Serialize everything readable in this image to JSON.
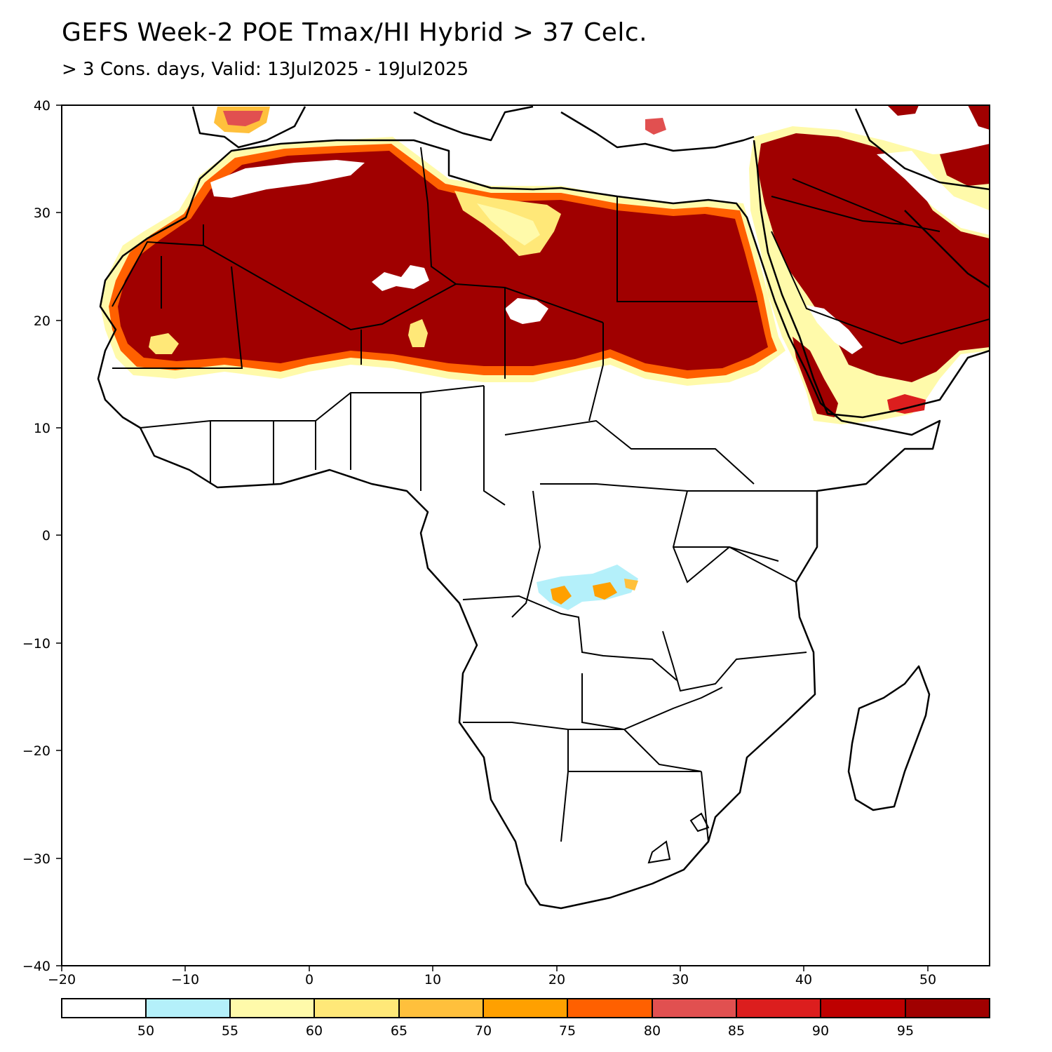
{
  "title": "GEFS Week-2 POE Tmax/HI Hybrid > 37 Celc.",
  "subtitle": "> 3 Cons. days, Valid: 13Jul2025 - 19Jul2025",
  "map": {
    "lon_range": [
      -20,
      55
    ],
    "lat_range": [
      -40,
      40
    ],
    "x_ticks": [
      "−20",
      "−10",
      "0",
      "10",
      "20",
      "30",
      "40",
      "50"
    ],
    "y_ticks": [
      "40",
      "30",
      "20",
      "10",
      "0",
      "−10",
      "−20",
      "−30",
      "−40"
    ],
    "shaded_regions": [
      "Sahara",
      "Arabian Peninsula",
      "Central Congo patch"
    ],
    "hot_color": "#a00000"
  },
  "colorbar": {
    "colors": [
      "#ffffff",
      "#b4f0fa",
      "#fffaaa",
      "#ffe878",
      "#ffc03c",
      "#ffa000",
      "#ff6000",
      "#e15050",
      "#dc1e1e",
      "#be0000",
      "#a00000"
    ],
    "labels": [
      "50",
      "55",
      "60",
      "65",
      "70",
      "75",
      "80",
      "85",
      "90",
      "95"
    ]
  }
}
